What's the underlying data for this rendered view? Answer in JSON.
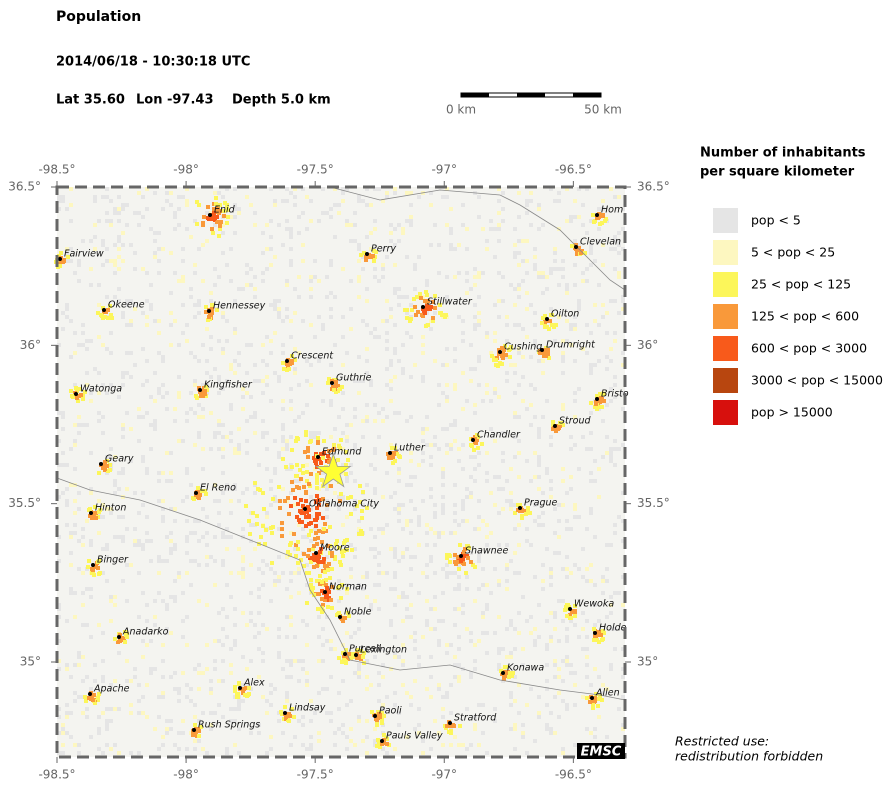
{
  "header": {
    "title": "Population",
    "datetime": "2014/06/18 - 10:30:18 UTC",
    "lat": "Lat 35.60",
    "lon": "Lon -97.43",
    "depth": "Depth  5.0 km"
  },
  "scale_bar": {
    "start": "0 km",
    "end": "50 km"
  },
  "map": {
    "xlim": [
      -98.5,
      -96.3
    ],
    "ylim": [
      34.7,
      36.5
    ],
    "xticks": [
      {
        "value": -98.5,
        "label": "-98.5°"
      },
      {
        "value": -98,
        "label": "-98°"
      },
      {
        "value": -97.5,
        "label": "-97.5°"
      },
      {
        "value": -97,
        "label": "-97°"
      },
      {
        "value": -96.5,
        "label": "-96.5°"
      }
    ],
    "yticks": [
      {
        "value": 36.5,
        "label": "36.5°"
      },
      {
        "value": 36,
        "label": "36°"
      },
      {
        "value": 35.5,
        "label": "35.5°"
      },
      {
        "value": 35,
        "label": "35°"
      }
    ],
    "epicenter": {
      "lat": 35.6,
      "lon": -97.43
    },
    "cities": [
      "Enid",
      "Fairview",
      "Perry",
      "Hom",
      "Clevelan",
      "Okeene",
      "Hennessey",
      "Stillwater",
      "Oilton",
      "Crescent",
      "Cushing",
      "Drumright",
      "Guthrie",
      "Watonga",
      "Kingfisher",
      "Bristo",
      "Stroud",
      "Chandler",
      "Luther",
      "Edmund",
      "Geary",
      "El Reno",
      "Oklahoma City",
      "Prague",
      "Hinton",
      "Moore",
      "Shawnee",
      "Binger",
      "Norman",
      "Noble",
      "Wewoka",
      "Anadarko",
      "Holde",
      "Purcell",
      "Lexington",
      "Konawa",
      "Alex",
      "Apache",
      "Allen",
      "Lindsay",
      "Paoli",
      "Stratford",
      "Rush Springs",
      "Pauls Valley"
    ],
    "logo": "EMSC"
  },
  "legend": {
    "title": [
      "Number of inhabitants",
      "per square kilometer"
    ],
    "items": [
      {
        "label": "pop < 5",
        "color": "#e5e5e5"
      },
      {
        "label": "5 < pop < 25",
        "color": "#fdf7c0"
      },
      {
        "label": "25 < pop < 125",
        "color": "#fcf65a"
      },
      {
        "label": "125 < pop < 600",
        "color": "#f9993a"
      },
      {
        "label": "600 < pop < 3000",
        "color": "#f85a1b"
      },
      {
        "label": "3000 < pop < 15000",
        "color": "#b8460f"
      },
      {
        "label": "pop > 15000",
        "color": "#d7100d"
      }
    ]
  },
  "note": [
    "Restricted use:",
    "redistribution forbidden"
  ]
}
